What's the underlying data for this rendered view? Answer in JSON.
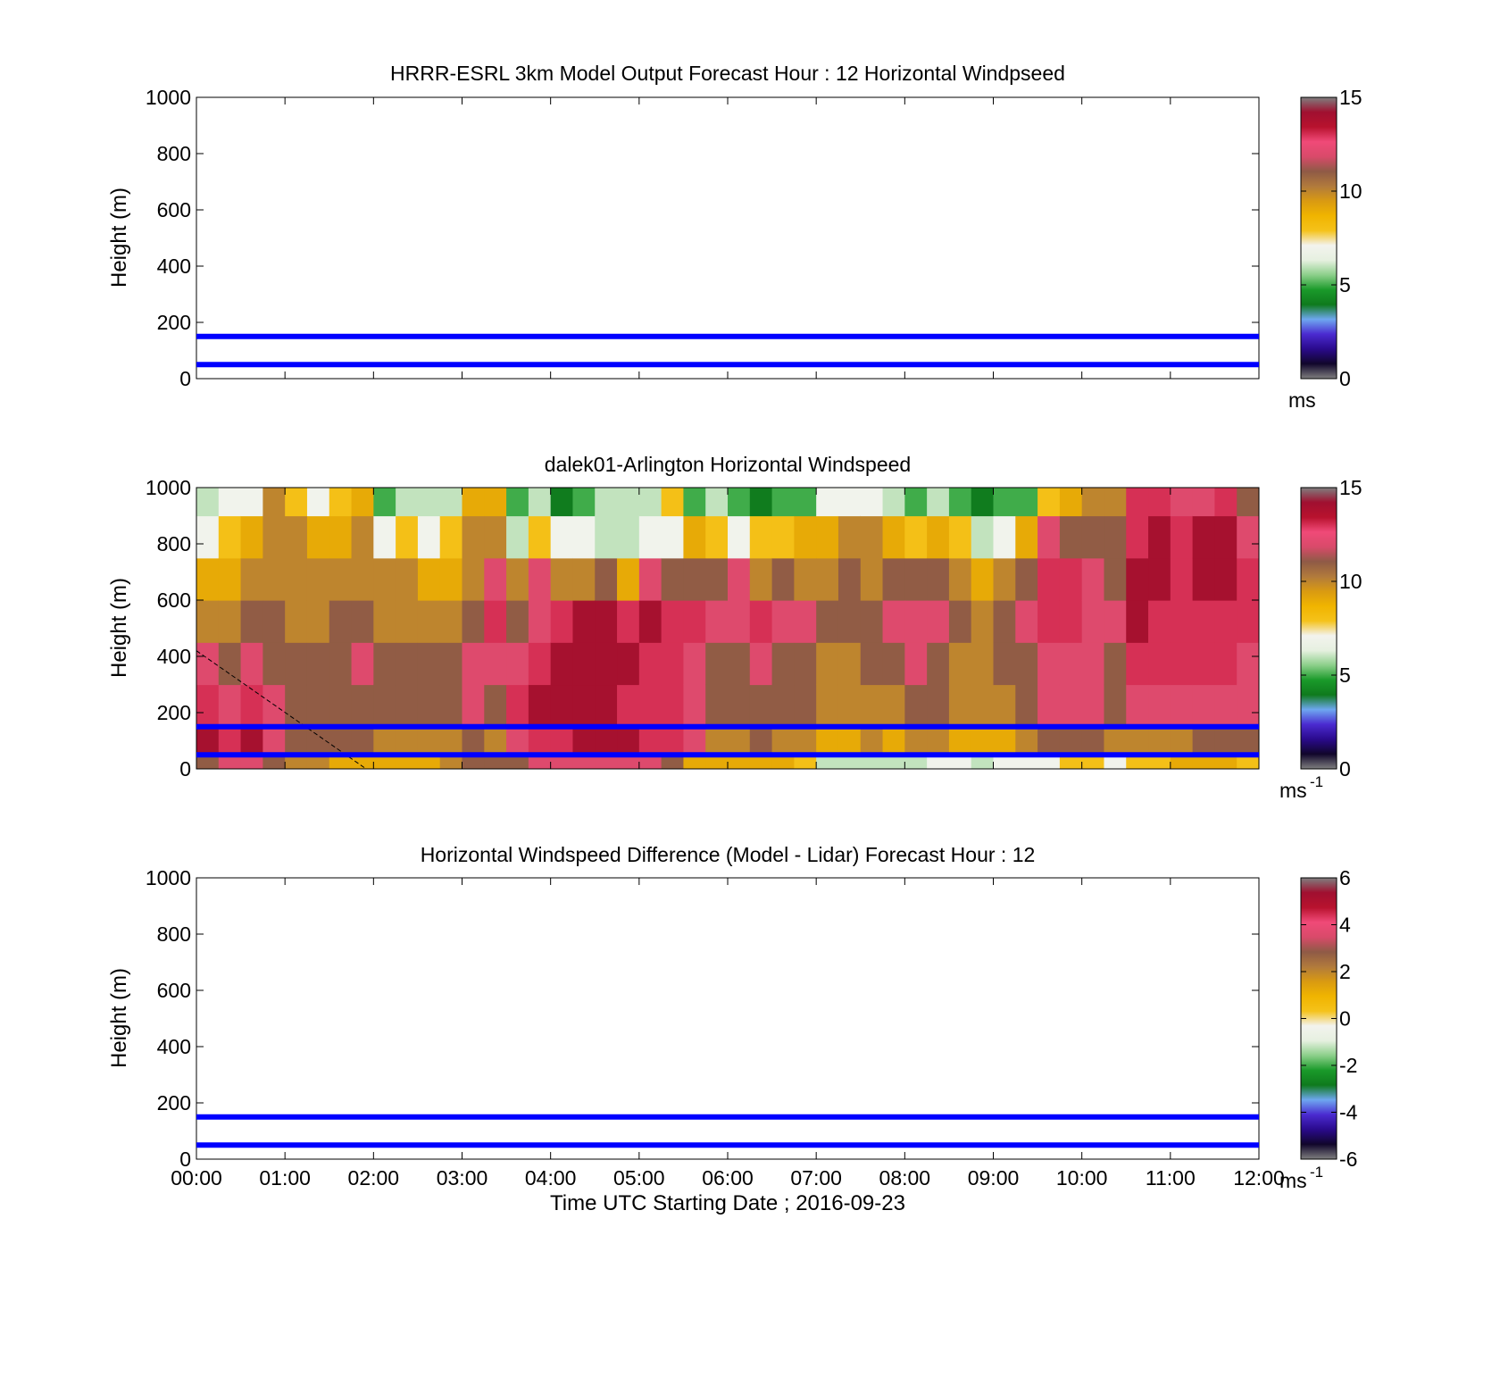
{
  "x_ticks": [
    "00:00",
    "01:00",
    "02:00",
    "03:00",
    "04:00",
    "05:00",
    "06:00",
    "07:00",
    "08:00",
    "09:00",
    "10:00",
    "11:00",
    "12:00"
  ],
  "x_label": "Time UTC  Starting Date ; 2016-09-23",
  "y_label": "Height (m)",
  "y_ticks": [
    "0",
    "200",
    "400",
    "600",
    "800",
    "1000"
  ],
  "colors": {
    "reference_lines": "#0000ff",
    "colormap": [
      "#7f7f7f",
      "#11062b",
      "#2a0a8c",
      "#4a2ad0",
      "#6ea7f0",
      "#0f7a1d",
      "#1a9a2a",
      "#8ccf8a",
      "#e6f0e0",
      "#f3f3ee",
      "#f5c21a",
      "#f0b400",
      "#d99a12",
      "#b17a3c",
      "#8f5a46",
      "#d94a6a",
      "#f04a78",
      "#b8122e",
      "#a01030",
      "#7f7f7f"
    ]
  },
  "chart_data": [
    {
      "type": "heatmap",
      "title": "HRRR-ESRL 3km Model Output   Forecast Hour : 12 Horizontal Windpseed",
      "xlabel": "",
      "ylabel": "Height (m)",
      "xlim": [
        "00:00",
        "12:00"
      ],
      "ylim": [
        0,
        1000
      ],
      "colorbar": {
        "ticks": [
          "0",
          "5",
          "10",
          "15"
        ],
        "range": [
          0,
          15
        ],
        "unit_label": "ms"
      },
      "reference_lines": [
        50,
        150
      ],
      "values": []
    },
    {
      "type": "heatmap",
      "title": "dalek01-Arlington  Horizontal Windspeed",
      "xlabel": "",
      "ylabel": "Height (m)",
      "xlim": [
        "00:00",
        "12:00"
      ],
      "ylim": [
        0,
        1000
      ],
      "colorbar": {
        "ticks": [
          "0",
          "5",
          "10",
          "15"
        ],
        "range": [
          0,
          15
        ],
        "unit_label": "ms",
        "unit_exponent": "-1"
      },
      "reference_lines": [
        50,
        150
      ],
      "dashed_line": {
        "from": [
          "00:00",
          420
        ],
        "to": [
          "01:55",
          0
        ]
      },
      "time_bins": 48,
      "heights": [
        {
          "min": 0,
          "max": 50
        },
        {
          "min": 50,
          "max": 150
        },
        {
          "min": 150,
          "max": 300
        },
        {
          "min": 300,
          "max": 450
        },
        {
          "min": 450,
          "max": 600
        },
        {
          "min": 600,
          "max": 750
        },
        {
          "min": 750,
          "max": 900
        },
        {
          "min": 900,
          "max": 1000
        }
      ],
      "speed_columns_ms": [
        [
          11,
          14,
          13,
          12,
          10,
          9,
          7,
          6
        ],
        [
          12,
          13,
          12,
          11,
          10,
          9,
          8,
          7
        ],
        [
          12,
          14,
          13,
          12,
          11,
          10,
          9,
          7
        ],
        [
          11,
          12,
          12,
          11,
          11,
          10,
          10,
          10
        ],
        [
          10,
          11,
          11,
          11,
          10,
          10,
          10,
          8
        ],
        [
          10,
          11,
          11,
          11,
          10,
          10,
          9,
          7
        ],
        [
          9,
          11,
          11,
          11,
          11,
          10,
          9,
          8
        ],
        [
          9,
          11,
          11,
          12,
          11,
          10,
          10,
          9
        ],
        [
          9,
          10,
          11,
          11,
          10,
          10,
          7,
          5
        ],
        [
          9,
          10,
          11,
          11,
          10,
          10,
          8,
          6
        ],
        [
          9,
          10,
          11,
          11,
          10,
          9,
          7,
          6
        ],
        [
          10,
          10,
          11,
          11,
          10,
          9,
          8,
          6
        ],
        [
          11,
          11,
          12,
          12,
          11,
          10,
          10,
          9
        ],
        [
          11,
          10,
          11,
          12,
          13,
          12,
          10,
          9
        ],
        [
          11,
          12,
          13,
          12,
          11,
          10,
          6,
          5
        ],
        [
          12,
          13,
          14,
          13,
          12,
          12,
          8,
          6
        ],
        [
          12,
          13,
          14,
          14,
          13,
          10,
          7,
          4
        ],
        [
          12,
          14,
          14,
          14,
          14,
          10,
          7,
          5
        ],
        [
          12,
          14,
          14,
          14,
          14,
          11,
          6,
          6
        ],
        [
          12,
          14,
          13,
          14,
          13,
          9,
          6,
          6
        ],
        [
          12,
          13,
          13,
          13,
          14,
          12,
          7,
          6
        ],
        [
          11,
          13,
          13,
          13,
          13,
          11,
          7,
          8
        ],
        [
          9,
          12,
          12,
          12,
          13,
          11,
          9,
          5
        ],
        [
          9,
          10,
          11,
          11,
          12,
          11,
          8,
          6
        ],
        [
          9,
          10,
          11,
          11,
          12,
          12,
          7,
          5
        ],
        [
          9,
          11,
          11,
          12,
          13,
          10,
          8,
          4
        ],
        [
          9,
          10,
          11,
          11,
          12,
          11,
          8,
          5
        ],
        [
          8,
          10,
          11,
          11,
          12,
          10,
          9,
          5
        ],
        [
          6,
          9,
          10,
          10,
          11,
          10,
          9,
          7
        ],
        [
          6,
          9,
          10,
          10,
          11,
          11,
          10,
          7
        ],
        [
          6,
          10,
          10,
          11,
          11,
          10,
          10,
          7
        ],
        [
          6,
          9,
          10,
          11,
          12,
          11,
          9,
          6
        ],
        [
          6,
          10,
          11,
          12,
          12,
          11,
          8,
          5
        ],
        [
          7,
          10,
          11,
          11,
          12,
          11,
          9,
          6
        ],
        [
          7,
          9,
          10,
          10,
          11,
          10,
          8,
          5
        ],
        [
          6,
          9,
          10,
          10,
          10,
          9,
          6,
          4
        ],
        [
          7,
          9,
          10,
          11,
          11,
          10,
          7,
          5
        ],
        [
          7,
          10,
          11,
          11,
          12,
          11,
          9,
          5
        ],
        [
          7,
          11,
          12,
          12,
          13,
          13,
          12,
          8
        ],
        [
          8,
          11,
          12,
          12,
          13,
          13,
          11,
          9
        ],
        [
          8,
          11,
          12,
          12,
          12,
          12,
          11,
          10
        ],
        [
          7,
          10,
          11,
          11,
          12,
          11,
          11,
          10
        ],
        [
          8,
          10,
          12,
          13,
          14,
          14,
          13,
          13
        ],
        [
          8,
          10,
          12,
          13,
          13,
          14,
          14,
          13
        ],
        [
          9,
          10,
          12,
          13,
          13,
          13,
          13,
          12
        ],
        [
          9,
          11,
          12,
          13,
          13,
          14,
          14,
          12
        ],
        [
          9,
          11,
          12,
          13,
          13,
          14,
          14,
          13
        ],
        [
          8,
          11,
          12,
          12,
          13,
          13,
          12,
          11
        ]
      ]
    },
    {
      "type": "heatmap",
      "title": "Horizontal Windspeed Difference (Model - Lidar) Forecast Hour : 12",
      "xlabel": "Time UTC  Starting Date ; 2016-09-23",
      "ylabel": "Height (m)",
      "xlim": [
        "00:00",
        "12:00"
      ],
      "ylim": [
        0,
        1000
      ],
      "colorbar": {
        "ticks": [
          "-6",
          "-4",
          "-2",
          "0",
          "2",
          "4",
          "6"
        ],
        "range": [
          -6,
          6
        ],
        "unit_label": "ms",
        "unit_exponent": "-1"
      },
      "reference_lines": [
        50,
        150
      ],
      "values": []
    }
  ]
}
